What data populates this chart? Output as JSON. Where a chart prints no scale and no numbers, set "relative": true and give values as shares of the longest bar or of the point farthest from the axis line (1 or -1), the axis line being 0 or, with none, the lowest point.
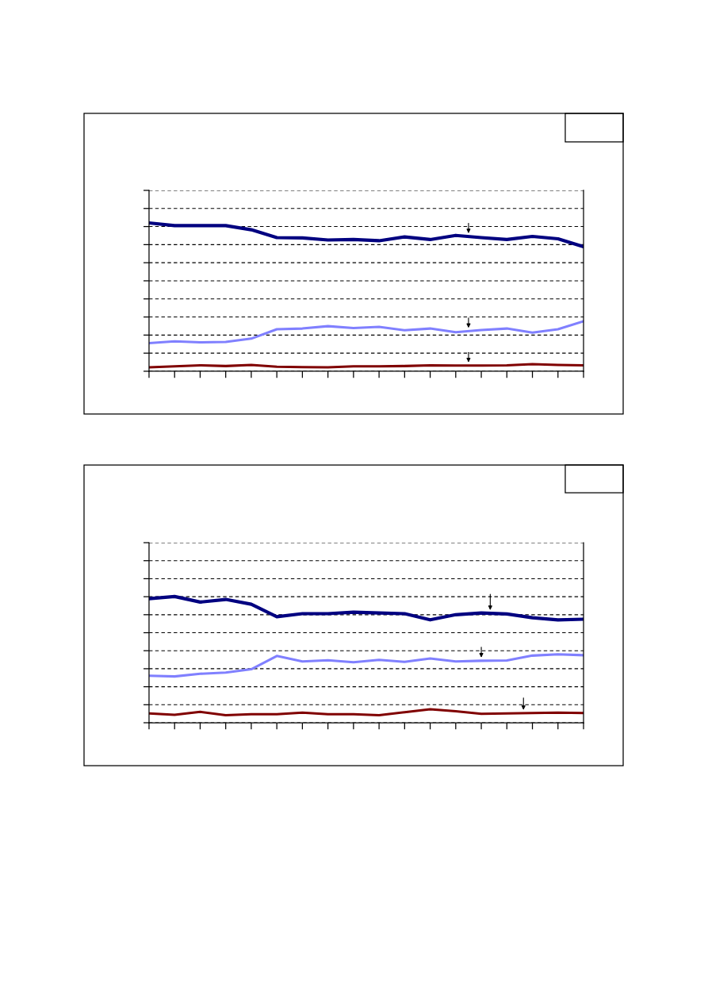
{
  "chart_data": [
    {
      "type": "line",
      "relative": true,
      "grid": "y",
      "tick_labels": false,
      "categories": [
        null,
        null,
        null,
        null,
        null,
        null,
        null,
        null,
        null,
        null,
        null,
        null,
        null,
        null,
        null,
        null,
        null,
        null
      ],
      "series": [
        {
          "color": "#000080",
          "values": [
            1,
            0.982,
            0.982,
            0.982,
            0.954,
            0.901,
            0.899,
            0.885,
            0.888,
            0.88,
            0.906,
            0.888,
            0.916,
            0.901,
            0.888,
            0.909,
            0.893,
            0.84
          ]
        },
        {
          "color": "#8080ff",
          "values": [
            0.19,
            0.202,
            0.195,
            0.198,
            0.22,
            0.283,
            0.288,
            0.304,
            0.291,
            0.299,
            0.276,
            0.288,
            0.263,
            0.278,
            0.288,
            0.261,
            0.283,
            0.337
          ]
        },
        {
          "color": "#800000",
          "values": [
            0.026,
            0.033,
            0.04,
            0.035,
            0.043,
            0.03,
            0.028,
            0.026,
            0.033,
            0.033,
            0.035,
            0.04,
            0.038,
            0.038,
            0.04,
            0.048,
            0.043,
            0.04
          ]
        }
      ]
    },
    {
      "type": "line",
      "relative": true,
      "grid": "y",
      "tick_labels": false,
      "categories": [
        null,
        null,
        null,
        null,
        null,
        null,
        null,
        null,
        null,
        null,
        null,
        null,
        null,
        null,
        null,
        null,
        null,
        null
      ],
      "series": [
        {
          "color": "#000080",
          "values": [
            0.983,
            1,
            0.956,
            0.977,
            0.939,
            0.84,
            0.864,
            0.864,
            0.876,
            0.87,
            0.864,
            0.815,
            0.856,
            0.87,
            0.862,
            0.832,
            0.815,
            0.82
          ]
        },
        {
          "color": "#8080ff",
          "values": [
            0.372,
            0.367,
            0.388,
            0.397,
            0.424,
            0.529,
            0.485,
            0.495,
            0.479,
            0.498,
            0.482,
            0.509,
            0.485,
            0.491,
            0.494,
            0.532,
            0.542,
            0.535
          ]
        },
        {
          "color": "#800000",
          "values": [
            0.074,
            0.063,
            0.086,
            0.06,
            0.068,
            0.068,
            0.08,
            0.068,
            0.068,
            0.06,
            0.083,
            0.107,
            0.091,
            0.071,
            0.074,
            0.077,
            0.08,
            0.077
          ]
        }
      ]
    }
  ]
}
